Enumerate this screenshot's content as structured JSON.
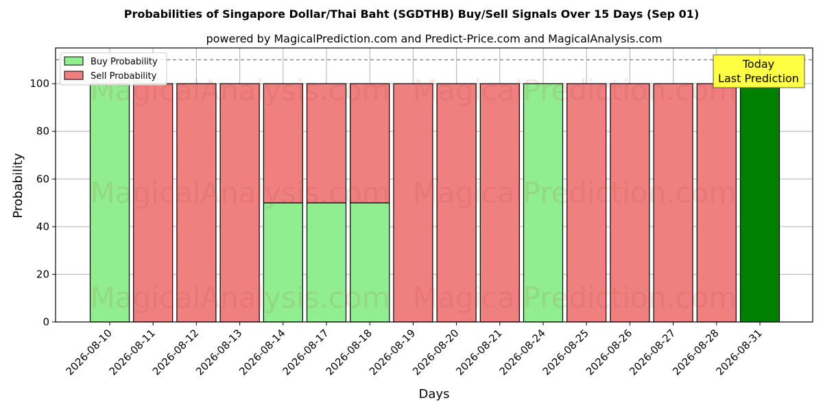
{
  "chart_data": {
    "type": "bar",
    "title": "Probabilities of Singapore Dollar/Thai Baht (SGDTHB) Buy/Sell Signals Over 15 Days (Sep 01)",
    "subtitle": "powered by MagicalPrediction.com and Predict-Price.com and MagicalAnalysis.com",
    "xlabel": "Days",
    "ylabel": "Probability",
    "ylim": [
      0,
      115
    ],
    "yticks": [
      0,
      20,
      40,
      60,
      80,
      100
    ],
    "reference_line": 110,
    "grid": true,
    "legend_position": "top-left",
    "categories": [
      "2026-08-10",
      "2026-08-11",
      "2026-08-12",
      "2026-08-13",
      "2026-08-14",
      "2026-08-17",
      "2026-08-18",
      "2026-08-19",
      "2026-08-20",
      "2026-08-21",
      "2026-08-24",
      "2026-08-25",
      "2026-08-26",
      "2026-08-27",
      "2026-08-28",
      "2026-08-31"
    ],
    "series": [
      {
        "name": "Buy Probability",
        "color": "#90ee90",
        "values": [
          100,
          0,
          0,
          0,
          50,
          50,
          50,
          0,
          0,
          0,
          100,
          0,
          0,
          0,
          0,
          100
        ]
      },
      {
        "name": "Sell Probability",
        "color": "#f08080",
        "values": [
          0,
          100,
          100,
          100,
          50,
          50,
          50,
          100,
          100,
          100,
          0,
          100,
          100,
          100,
          100,
          0
        ]
      }
    ],
    "highlight": {
      "index": 15,
      "color": "#008000"
    },
    "annotation": {
      "lines": [
        "Today",
        "Last Prediction"
      ],
      "color": "#ffff44"
    },
    "watermarks": [
      "MagicalAnalysis.com",
      "MagicalPrediction.com"
    ]
  }
}
